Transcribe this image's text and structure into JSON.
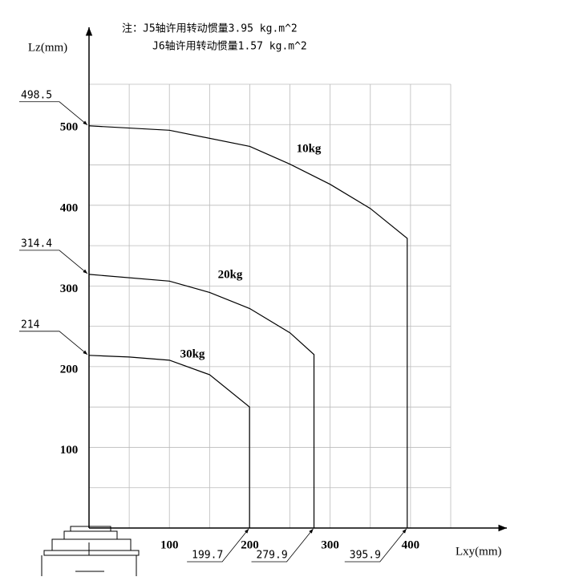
{
  "chart_data": {
    "type": "line",
    "notes": [
      "注：J5轴许用转动惯量3.95 kg.m^2",
      "J6轴许用转动惯量1.57 kg.m^2"
    ],
    "y_label": "Lz(mm)",
    "x_label": "Lxy(mm)",
    "xlim": [
      0,
      450
    ],
    "ylim": [
      0,
      550
    ],
    "xticks": [
      100,
      200,
      300,
      400
    ],
    "yticks": [
      100,
      200,
      300,
      400,
      500
    ],
    "minor_xticks": [
      50,
      150,
      250,
      350,
      450
    ],
    "minor_yticks": [
      50,
      150,
      250,
      350,
      450,
      550
    ],
    "grid": true,
    "series": [
      {
        "name": "10kg",
        "color": "#000000",
        "x": [
          0,
          100,
          200,
          250,
          300,
          350,
          395.9,
          395.9
        ],
        "values": [
          498.5,
          493,
          473,
          451,
          426,
          396,
          359,
          0
        ]
      },
      {
        "name": "20kg",
        "color": "#000000",
        "x": [
          0,
          100,
          150,
          200,
          250,
          279.9,
          279.9
        ],
        "values": [
          314.4,
          306,
          292,
          272,
          242,
          215,
          0
        ]
      },
      {
        "name": "30kg",
        "color": "#000000",
        "x": [
          0,
          50,
          100,
          150,
          199.7,
          199.7
        ],
        "values": [
          214,
          212,
          208,
          190,
          150,
          0
        ]
      }
    ]
  }
}
